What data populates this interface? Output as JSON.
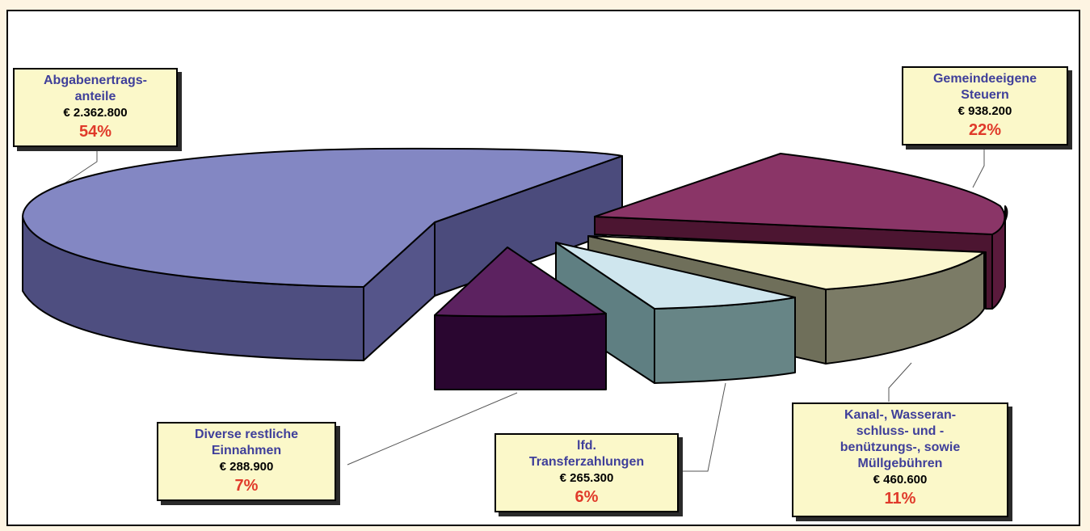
{
  "chart_data": {
    "type": "pie",
    "slices": [
      {
        "name": "Abgabenertrags-\nanteile",
        "amount": "€ 2.362.800",
        "value": 2362800,
        "percent_label": "54%",
        "color": "#8387c3"
      },
      {
        "name": "Gemeindeeigene\nSteuern",
        "amount": "€ 938.200",
        "value": 938200,
        "percent_label": "22%",
        "color": "#8a3567"
      },
      {
        "name": "Kanal-, Wasseran-\nschluss- und -\nbenützungs-, sowie\nMüllgebühren",
        "amount": "€ 460.600",
        "value": 460600,
        "percent_label": "11%",
        "color": "#fbf7cf"
      },
      {
        "name": "lfd.\nTransferzahlungen",
        "amount": "€ 265.300",
        "value": 265300,
        "percent_label": "6%",
        "color": "#cfe6ee"
      },
      {
        "name": "Diverse restliche\nEinnahmen",
        "amount": "€ 288.900",
        "value": 288900,
        "percent_label": "7%",
        "color": "#5c2260"
      }
    ]
  },
  "labels": {
    "abgaben": {
      "line1": "Abgabenertrags-",
      "line2": "anteile",
      "amount": "€ 2.362.800",
      "pct": "54%"
    },
    "steuern": {
      "line1": "Gemeindeeigene",
      "line2": "Steuern",
      "amount": "€ 938.200",
      "pct": "22%"
    },
    "kanal": {
      "line1": "Kanal-, Wasseran-",
      "line2": "schluss- und -",
      "line3": "benützungs-, sowie",
      "line4": "Müllgebühren",
      "amount": "€ 460.600",
      "pct": "11%"
    },
    "transfer": {
      "line1": "lfd.",
      "line2": "Transferzahlungen",
      "amount": "€ 265.300",
      "pct": "6%"
    },
    "diverse": {
      "line1": "Diverse restliche",
      "line2": "Einnahmen",
      "amount": "€ 288.900",
      "pct": "7%"
    }
  }
}
